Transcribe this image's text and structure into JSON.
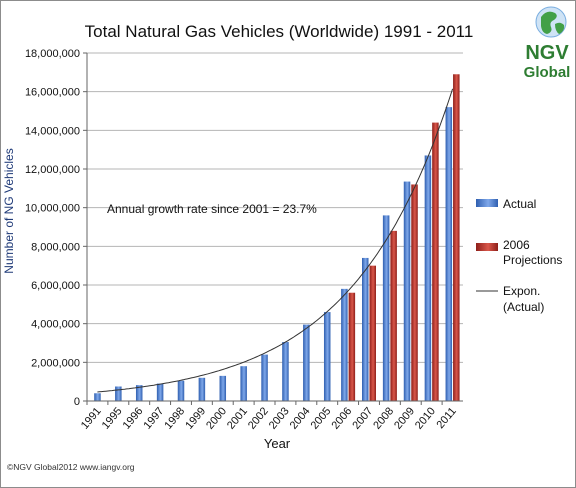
{
  "chart_data": {
    "type": "bar",
    "title": "Total Natural Gas Vehicles (Worldwide) 1991 - 2011",
    "xlabel": "Year",
    "ylabel": "Number of NG Vehicles",
    "ylim": [
      0,
      18000000
    ],
    "yticks": [
      0,
      2000000,
      4000000,
      6000000,
      8000000,
      10000000,
      12000000,
      14000000,
      16000000,
      18000000
    ],
    "ytick_labels": [
      "0",
      "2,000,000",
      "4,000,000",
      "6,000,000",
      "8,000,000",
      "10,000,000",
      "12,000,000",
      "14,000,000",
      "16,000,000",
      "18,000,000"
    ],
    "grid": "horizontal",
    "legend_position": "right",
    "categories": [
      "1991",
      "1995",
      "1996",
      "1997",
      "1998",
      "1999",
      "2000",
      "2001",
      "2002",
      "2003",
      "2004",
      "2005",
      "2006",
      "2007",
      "2008",
      "2009",
      "2010",
      "2011"
    ],
    "series": [
      {
        "name": "Actual",
        "color": "#4a7fd4",
        "values": [
          400000,
          750000,
          820000,
          900000,
          1050000,
          1200000,
          1300000,
          1800000,
          2400000,
          3050000,
          3950000,
          4600000,
          5800000,
          7400000,
          9600000,
          11350000,
          12700000,
          15200000
        ]
      },
      {
        "name": "2006 Projections",
        "color": "#c0392b",
        "values": [
          null,
          null,
          null,
          null,
          null,
          null,
          null,
          null,
          null,
          null,
          null,
          null,
          5600000,
          7000000,
          8800000,
          11200000,
          14400000,
          16900000
        ]
      }
    ],
    "trendline": {
      "name": "Expon. (Actual)",
      "type": "exponential",
      "color": "#333333"
    },
    "annotation": "Annual growth rate since 2001 = 23.7%"
  },
  "logo": {
    "line1": "NGV",
    "line2": "Global",
    "icon": "globe-icon"
  },
  "footer": {
    "text": "©NGV Global2012 www.iangv.org"
  }
}
